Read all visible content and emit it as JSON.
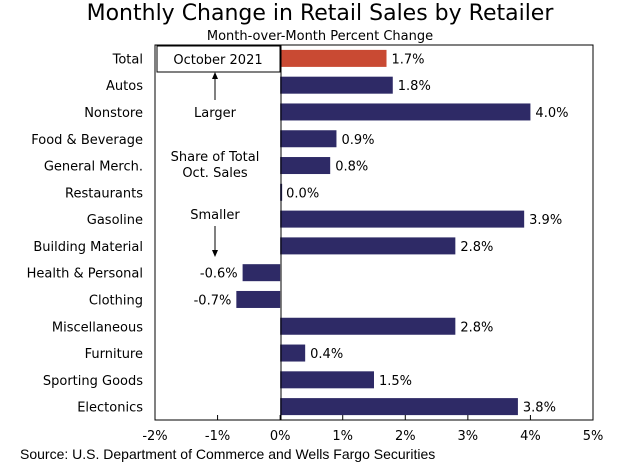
{
  "chart_data": {
    "type": "bar",
    "orientation": "horizontal",
    "title": "Monthly Change in Retail Sales by Retailer",
    "subtitle": "Month-over-Month Percent Change",
    "categories": [
      "Total",
      "Autos",
      "Nonstore",
      "Food & Beverage",
      "General Merch.",
      "Restaurants",
      "Gasoline",
      "Building Material",
      "Health & Personal",
      "Clothing",
      "Miscellaneous",
      "Furniture",
      "Sporting Goods",
      "Electonics"
    ],
    "values": [
      1.7,
      1.8,
      4.0,
      0.9,
      0.8,
      0.0,
      3.9,
      2.8,
      -0.6,
      -0.7,
      2.8,
      0.4,
      1.5,
      3.8
    ],
    "value_labels": [
      "1.7%",
      "1.8%",
      "4.0%",
      "0.9%",
      "0.8%",
      "0.0%",
      "3.9%",
      "2.8%",
      "-0.6%",
      "-0.7%",
      "2.8%",
      "0.4%",
      "1.5%",
      "3.8%"
    ],
    "highlight_category": "Total",
    "xlim": [
      -2,
      5
    ],
    "xticks": [
      -2,
      -1,
      0,
      1,
      2,
      3,
      4,
      5
    ],
    "xtick_labels": [
      "-2%",
      "-1%",
      "0%",
      "1%",
      "2%",
      "3%",
      "4%",
      "5%"
    ],
    "xlabel": "",
    "ylabel": "",
    "grid": false,
    "annotations": {
      "legend_box": "October 2021",
      "larger": "Larger",
      "share_line1": "Share of Total",
      "share_line2": "Oct. Sales",
      "smaller": "Smaller"
    },
    "colors": {
      "bar": "#2e2a66",
      "highlight": "#c94a33"
    }
  },
  "source": "Source: U.S. Department of Commerce and Wells Fargo Securities"
}
